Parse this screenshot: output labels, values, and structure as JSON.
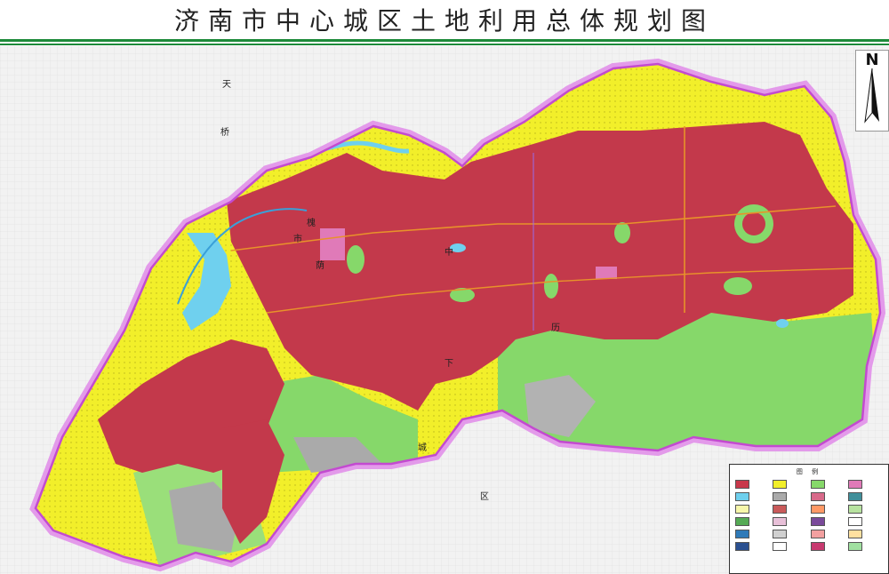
{
  "title": "济南市中心城区土地利用总体规划图",
  "north_label": "N",
  "map_labels": [
    "天",
    "桥",
    "市",
    "中",
    "槐",
    "荫",
    "历",
    "下",
    "区",
    "城"
  ],
  "legend": {
    "title": "图 例",
    "items": [
      {
        "color": "#c8384a"
      },
      {
        "color": "#f2ef2a"
      },
      {
        "color": "#86d86a"
      },
      {
        "color": "#e07ab8"
      },
      {
        "color": "#6fd0ee"
      },
      {
        "color": "#aaaaaa"
      },
      {
        "color": "#d86a8a"
      },
      {
        "color": "#3f8f9a"
      },
      {
        "color": "#f7f7aa"
      },
      {
        "color": "#c95a5a"
      },
      {
        "color": "#ff9966"
      },
      {
        "color": "#b8e3a0"
      },
      {
        "color": "#55aa55"
      },
      {
        "color": "#e8c0d8"
      },
      {
        "color": "#7a4a9a"
      },
      {
        "color": "#ffffff"
      },
      {
        "color": "#2f7ab8"
      },
      {
        "color": "#d0d0d0"
      },
      {
        "color": "#f2a0a0"
      },
      {
        "color": "#ffe0a0"
      },
      {
        "color": "#2a5090"
      },
      {
        "color": "#ffffff"
      },
      {
        "color": "#c83a70"
      },
      {
        "color": "#a0e0a0"
      }
    ]
  },
  "colors": {
    "urban": "#c3394b",
    "farmland": "#f2ef2a",
    "forest": "#86d86a",
    "water": "#6fd0ee",
    "boundary": "#d86ee0",
    "bare": "#aaaaaa",
    "outside": "#f2f2f2",
    "title_rule": "#1d8a3a"
  }
}
